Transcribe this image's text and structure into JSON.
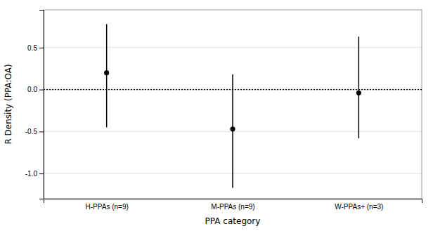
{
  "chart_data": {
    "type": "errorbar",
    "categories": [
      "H-PPAs (n=9)",
      "M-PPAs (n=9)",
      "W-PPAs+ (n=3)"
    ],
    "values": [
      0.2,
      -0.47,
      -0.04
    ],
    "ci_lower": [
      -0.45,
      -1.17,
      -0.58
    ],
    "ci_upper": [
      0.78,
      0.18,
      0.63
    ],
    "xlabel": "PPA category",
    "ylabel": "R Density (PPA:OA)",
    "ylim": [
      -1.3,
      0.95
    ],
    "yticks": [
      {
        "value": -1.0,
        "label": "-1.0"
      },
      {
        "value": -0.5,
        "label": "-0.5"
      },
      {
        "value": 0.0,
        "label": "0.0"
      },
      0.5
    ],
    "hline_y": 0.0,
    "grid": true,
    "color": "black",
    "marker": "circle"
  }
}
